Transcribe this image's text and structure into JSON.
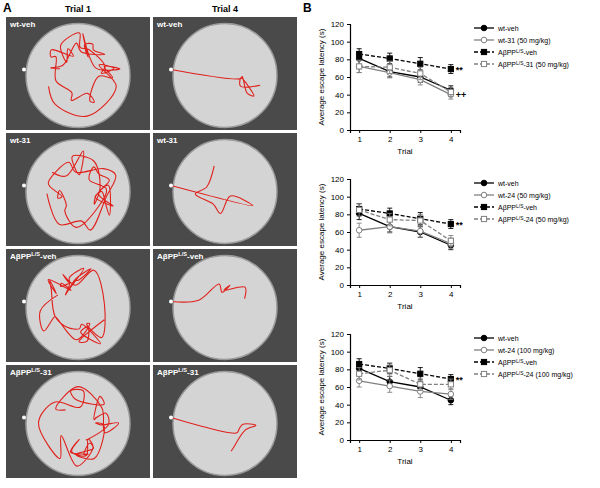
{
  "panel_a": {
    "label": "A",
    "columns": [
      "Trial 1",
      "Trial 4"
    ],
    "rows": [
      "wt-veh",
      "wt-31",
      "AβPPL/S-veh",
      "AβPPL/S-31"
    ]
  },
  "panel_b": {
    "label": "B"
  },
  "chart_data": [
    {
      "type": "line",
      "x_label": "Trial",
      "y_label": "Average escape latency (s)",
      "x": [
        1,
        2,
        3,
        4
      ],
      "xlim": [
        0.7,
        4.3
      ],
      "xticks": [
        1,
        2,
        3,
        4
      ],
      "ylim": [
        0,
        120
      ],
      "yticks": [
        0,
        20,
        40,
        60,
        80,
        100,
        120
      ],
      "legend": "right",
      "series": [
        {
          "name": "wt-veh",
          "color": "#000000",
          "marker": "circle",
          "line_style": "solid",
          "values": [
            81,
            66,
            60,
            45
          ],
          "errors": [
            7,
            6,
            6,
            5
          ]
        },
        {
          "name": "wt-31 (50 mg/kg)",
          "color": "#808080",
          "marker": "open-circle",
          "line_style": "solid",
          "values": [
            72,
            65,
            57,
            40
          ],
          "errors": [
            7,
            6,
            6,
            5
          ]
        },
        {
          "name": "AβPPL/S-veh",
          "color": "#000000",
          "marker": "square",
          "line_style": "dashed",
          "values": [
            86,
            81,
            75,
            69
          ],
          "errors": [
            6,
            6,
            7,
            5
          ]
        },
        {
          "name": "AβPPL/S-31 (50 mg/kg)",
          "color": "#808080",
          "marker": "open-square",
          "line_style": "dashed",
          "values": [
            72,
            71,
            64,
            43
          ],
          "errors": [
            7,
            7,
            7,
            5
          ]
        }
      ],
      "annotations": [
        {
          "text": "**",
          "x": 4,
          "y": 69
        },
        {
          "text": "++",
          "x": 4,
          "y": 41
        }
      ]
    },
    {
      "type": "line",
      "x_label": "Trial",
      "y_label": "Average escape latency (s)",
      "x": [
        1,
        2,
        3,
        4
      ],
      "xlim": [
        0.7,
        4.3
      ],
      "xticks": [
        1,
        2,
        3,
        4
      ],
      "ylim": [
        0,
        120
      ],
      "yticks": [
        0,
        20,
        40,
        60,
        80,
        100,
        120
      ],
      "legend": "right",
      "series": [
        {
          "name": "wt-veh",
          "color": "#000000",
          "marker": "circle",
          "line_style": "solid",
          "values": [
            81,
            66,
            60,
            45
          ],
          "errors": [
            7,
            6,
            6,
            5
          ]
        },
        {
          "name": "wt-24 (50 mg/kg)",
          "color": "#808080",
          "marker": "open-circle",
          "line_style": "solid",
          "values": [
            62,
            66,
            61,
            47
          ],
          "errors": [
            8,
            7,
            7,
            6
          ]
        },
        {
          "name": "AβPPL/S-veh",
          "color": "#000000",
          "marker": "square",
          "line_style": "dashed",
          "values": [
            86,
            81,
            75,
            69
          ],
          "errors": [
            6,
            6,
            7,
            5
          ]
        },
        {
          "name": "AβPPL/S-24 (50 mg/kg)",
          "color": "#808080",
          "marker": "open-square",
          "line_style": "dashed",
          "values": [
            85,
            74,
            73,
            50
          ],
          "errors": [
            7,
            7,
            7,
            6
          ]
        }
      ],
      "annotations": [
        {
          "text": "**",
          "x": 4,
          "y": 69
        }
      ]
    },
    {
      "type": "line",
      "x_label": "Trial",
      "y_label": "Average escape latency (s)",
      "x": [
        1,
        2,
        3,
        4
      ],
      "xlim": [
        0.7,
        4.3
      ],
      "xticks": [
        1,
        2,
        3,
        4
      ],
      "ylim": [
        0,
        120
      ],
      "yticks": [
        0,
        20,
        40,
        60,
        80,
        100,
        120
      ],
      "legend": "right",
      "series": [
        {
          "name": "wt-veh",
          "color": "#000000",
          "marker": "circle",
          "line_style": "solid",
          "values": [
            81,
            66,
            60,
            45
          ],
          "errors": [
            7,
            6,
            6,
            5
          ]
        },
        {
          "name": "wt-24 (100 mg/kg)",
          "color": "#808080",
          "marker": "open-circle",
          "line_style": "solid",
          "values": [
            67,
            61,
            55,
            52
          ],
          "errors": [
            7,
            7,
            7,
            6
          ]
        },
        {
          "name": "AβPPL/S-veh",
          "color": "#000000",
          "marker": "square",
          "line_style": "dashed",
          "values": [
            86,
            81,
            75,
            69
          ],
          "errors": [
            6,
            6,
            7,
            5
          ]
        },
        {
          "name": "AβPPL/S-24 (100 mg/kg)",
          "color": "#808080",
          "marker": "open-square",
          "line_style": "dashed",
          "values": [
            75,
            79,
            63,
            63
          ],
          "errors": [
            7,
            7,
            7,
            6
          ]
        }
      ],
      "annotations": [
        {
          "text": "**",
          "x": 4,
          "y": 69
        }
      ]
    }
  ]
}
